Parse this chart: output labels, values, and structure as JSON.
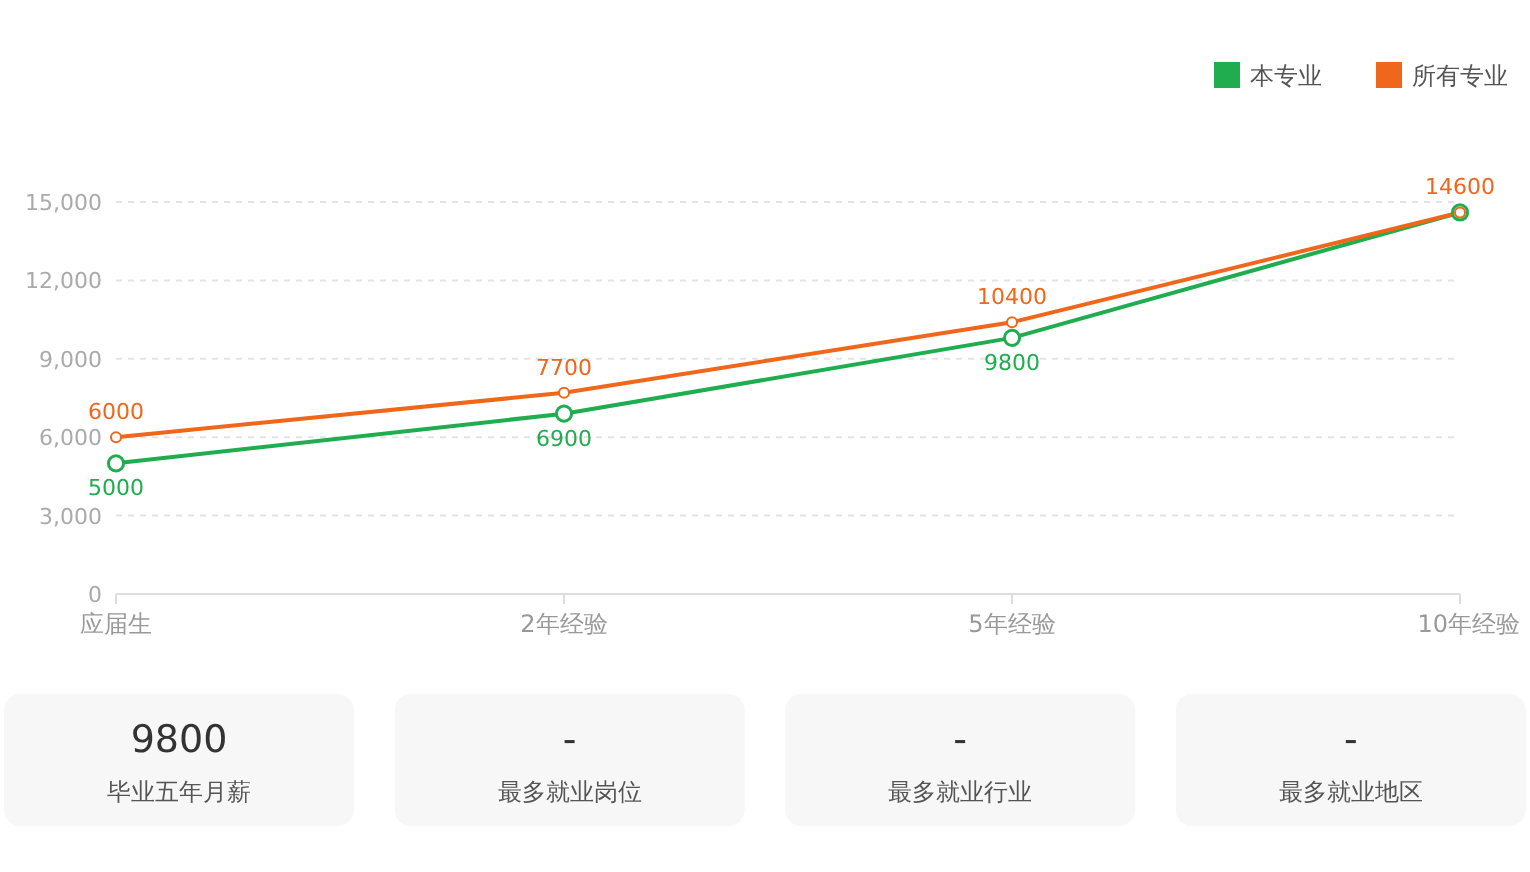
{
  "chart_data": [
    {
      "type": "line",
      "categories": [
        "应届生",
        "2年经验",
        "5年经验",
        "10年经验"
      ],
      "series": [
        {
          "name": "本专业",
          "color": "#1fad4f",
          "values": [
            5000,
            6900,
            9800,
            14600
          ],
          "value_labels": [
            "5000",
            "6900",
            "9800",
            null
          ]
        },
        {
          "name": "所有专业",
          "color": "#f0661a",
          "values": [
            6000,
            7700,
            10400,
            14600
          ],
          "value_labels": [
            "6000",
            "7700",
            "10400",
            "14600"
          ]
        }
      ],
      "ylim": [
        0,
        15000
      ],
      "yticks": [
        {
          "value": 0,
          "label": "0"
        },
        {
          "value": 3000,
          "label": "3,000"
        },
        {
          "value": 6000,
          "label": "6,000"
        },
        {
          "value": 9000,
          "label": "9,000"
        },
        {
          "value": 12000,
          "label": "12,000"
        },
        {
          "value": 15000,
          "label": "15,000"
        }
      ],
      "grid": "y",
      "legend": "top right",
      "marker": "circle",
      "line_style": "solid"
    },
    {
      "type": "other",
      "annotations": [
        "9800",
        "毕业五年月薪",
        "-",
        "最多就业岗位",
        "-",
        "最多就业行业",
        "-",
        "最多就业地区"
      ]
    }
  ]
}
